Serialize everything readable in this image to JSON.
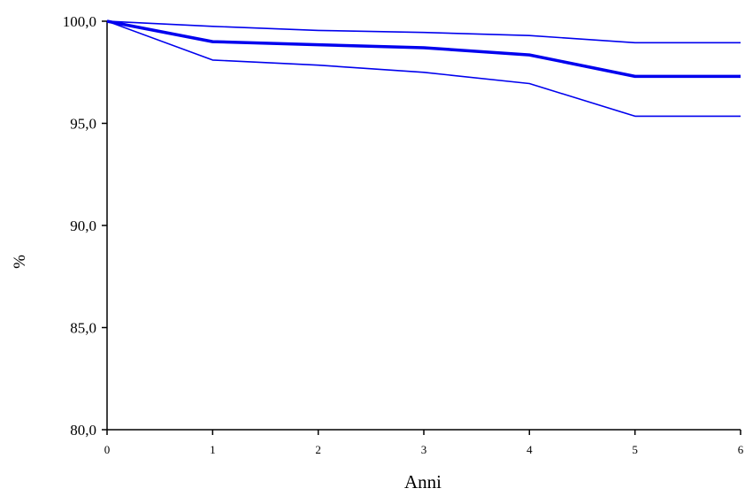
{
  "chart_data": {
    "type": "line",
    "title": "",
    "xlabel": "Anni",
    "ylabel": "%",
    "xlim": [
      0,
      6
    ],
    "ylim": [
      80,
      100
    ],
    "x_ticks": [
      "0",
      "1",
      "2",
      "3",
      "4",
      "5",
      "6"
    ],
    "y_ticks": [
      "80,0",
      "85,0",
      "90,0",
      "95,0",
      "100,0"
    ],
    "grid": false,
    "legend": "none",
    "line_color": "#0000ee",
    "series": [
      {
        "role": "estimate",
        "x": [
          0,
          1,
          2,
          3,
          4,
          5,
          6
        ],
        "values": [
          100.0,
          99.0,
          98.85,
          98.7,
          98.35,
          97.3,
          97.3
        ]
      },
      {
        "role": "upper",
        "x": [
          0,
          1,
          2,
          3,
          4,
          5,
          6
        ],
        "values": [
          100.0,
          99.75,
          99.55,
          99.45,
          99.3,
          98.95,
          98.95
        ]
      },
      {
        "role": "lower",
        "x": [
          0,
          1,
          2,
          3,
          4,
          5,
          6
        ],
        "values": [
          100.0,
          98.1,
          97.85,
          97.5,
          96.95,
          95.35,
          95.35
        ]
      }
    ]
  }
}
